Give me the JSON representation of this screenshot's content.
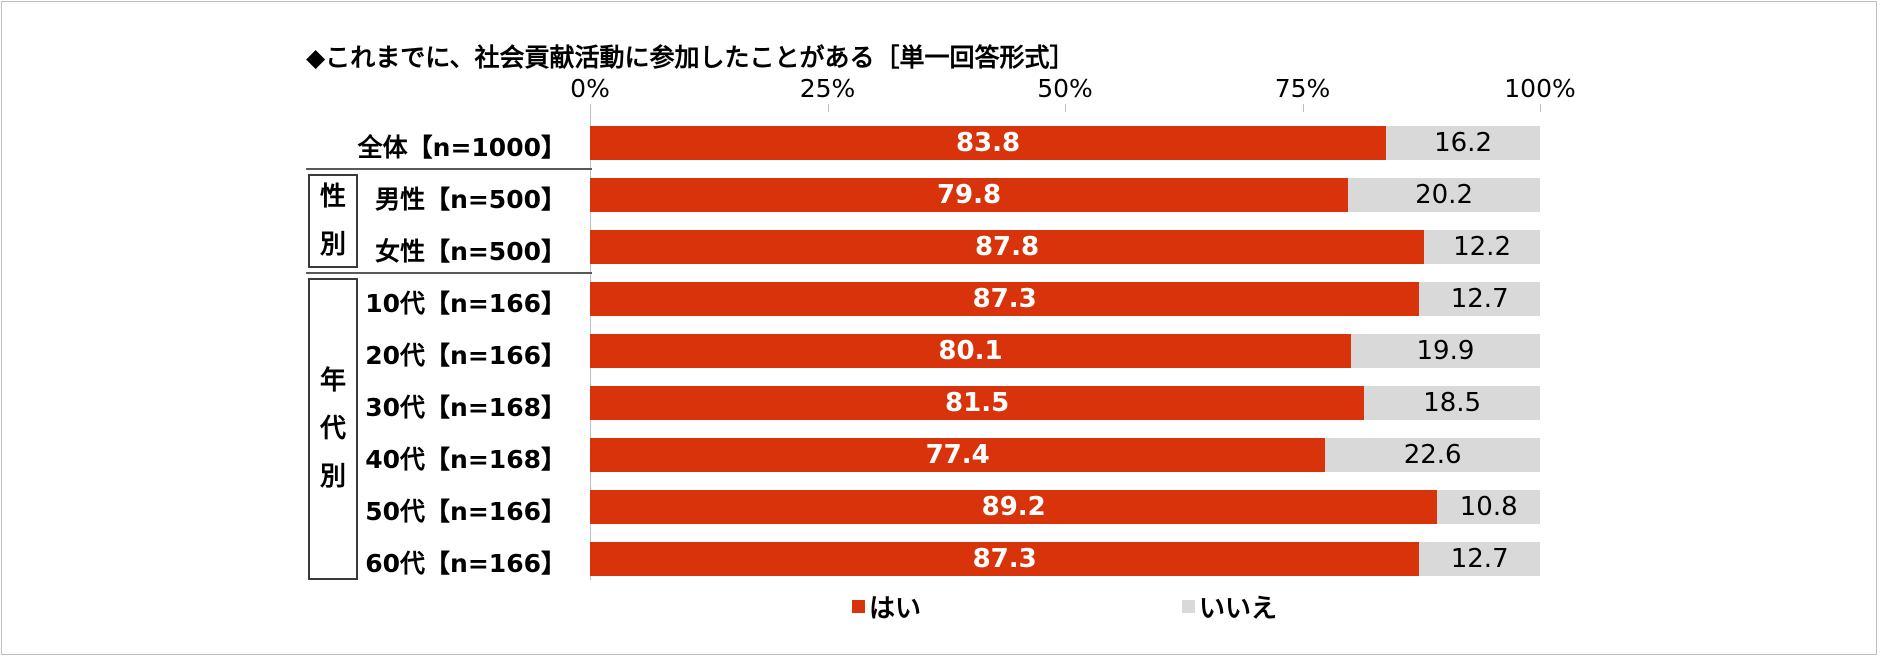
{
  "chart_data": {
    "type": "bar",
    "orientation": "horizontal",
    "stacked": true,
    "title": "◆これまでに、社会貢献活動に参加したことがある［単一回答形式］",
    "xlim": [
      0,
      100
    ],
    "x_ticks": [
      "0%",
      "25%",
      "50%",
      "75%",
      "100%"
    ],
    "categories": [
      "全体【n=1000】",
      "男性【n=500】",
      "女性【n=500】",
      "10代【n=166】",
      "20代【n=166】",
      "30代【n=168】",
      "40代【n=168】",
      "50代【n=166】",
      "60代【n=166】"
    ],
    "groups": [
      {
        "label": "性別",
        "categories": [
          "男性【n=500】",
          "女性【n=500】"
        ]
      },
      {
        "label": "年代別",
        "categories": [
          "10代【n=166】",
          "20代【n=166】",
          "30代【n=168】",
          "40代【n=168】",
          "50代【n=166】",
          "60代【n=166】"
        ]
      }
    ],
    "series": [
      {
        "name": "はい",
        "color": "#d9330b",
        "values": [
          83.8,
          79.8,
          87.8,
          87.3,
          80.1,
          81.5,
          77.4,
          89.2,
          87.3
        ]
      },
      {
        "name": "いいえ",
        "color": "#d9d9d9",
        "values": [
          16.2,
          20.2,
          12.2,
          12.7,
          19.9,
          18.5,
          22.6,
          10.8,
          12.7
        ]
      }
    ],
    "legend_position": "bottom",
    "grid": false
  }
}
